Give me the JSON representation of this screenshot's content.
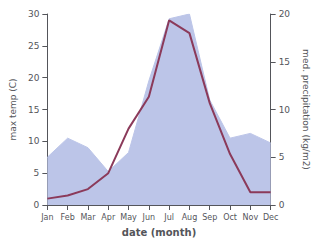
{
  "chart_data": {
    "type": "line",
    "xlabel": "date (month)",
    "ylabel": "max temp (C)",
    "y2label": "med. precipitation (kg/m2)",
    "categories": [
      "Jan",
      "Feb",
      "Mar",
      "Apr",
      "May",
      "Jun",
      "Jul",
      "Aug",
      "Sep",
      "Oct",
      "Nov",
      "Dec"
    ],
    "series": [
      {
        "type": "area",
        "axis": "y2",
        "color": "#bcc5e8",
        "values": [
          5.0,
          7.0,
          6.0,
          3.5,
          5.5,
          13.0,
          19.5,
          20.0,
          11.0,
          7.0,
          7.5,
          6.5
        ]
      },
      {
        "type": "line",
        "color": "#8b3a5a",
        "values": [
          1.0,
          1.5,
          2.5,
          5.0,
          12.0,
          17.0,
          29.0,
          27.0,
          16.0,
          8.0,
          2.0,
          2.0
        ]
      }
    ],
    "ylim": [
      0,
      30
    ],
    "yticks": [
      0,
      5,
      10,
      15,
      20,
      25,
      30
    ],
    "y2lim": [
      0,
      20
    ],
    "y2ticks": [
      0,
      5,
      10,
      15,
      20
    ],
    "grid": false
  }
}
